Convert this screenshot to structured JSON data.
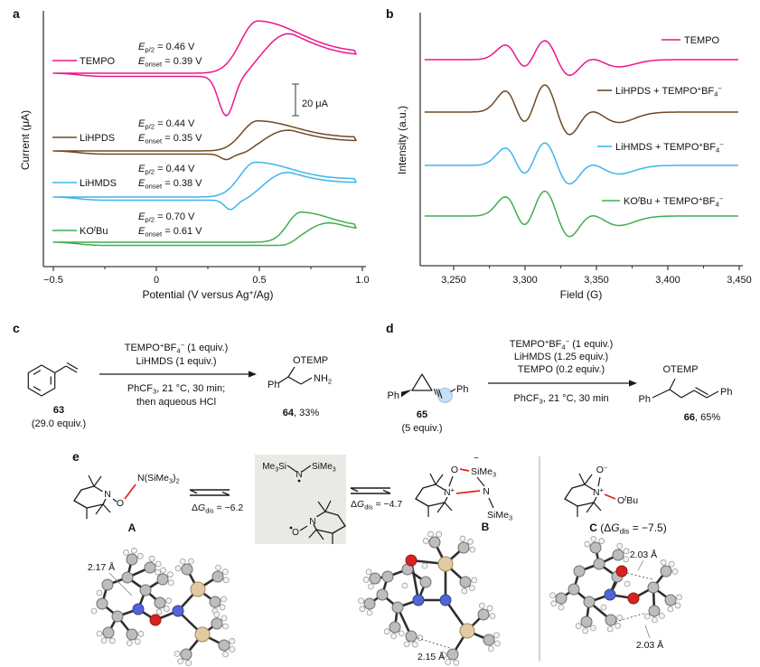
{
  "colors": {
    "pink": "#ec168c",
    "brown": "#6e4a24",
    "blue": "#3db5e9",
    "green": "#3fae4f",
    "axis": "#3a3a3a",
    "highlight_bond": "#e32222",
    "box_bg": "#e9e9e6",
    "circle_highlight": "#c7dff2"
  },
  "panels": {
    "a": {
      "label": "a",
      "y_title": "Current (μA)",
      "x_title": "Potential (V versus Ag^{+}/Ag)",
      "x_ticks": [
        "−0.5",
        "0",
        "0.5",
        "1.0"
      ],
      "scale_bar": "20 μA",
      "series": [
        {
          "name": "TEMPO",
          "ep": "*E*_{p/2} = 0.46 V",
          "eonset": "*E*_{onset} = 0.39 V"
        },
        {
          "name": "LiHPDS",
          "ep": "*E*_{p/2} = 0.44 V",
          "eonset": "*E*_{onset} = 0.35 V"
        },
        {
          "name": "LiHMDS",
          "ep": "*E*_{p/2} = 0.44 V",
          "eonset": "*E*_{onset} = 0.38 V"
        },
        {
          "name": "KO^{t}Bu",
          "ep": "*E*_{p/2} = 0.70 V",
          "eonset": "*E*_{onset} = 0.61 V"
        }
      ]
    },
    "b": {
      "label": "b",
      "y_title": "Intensity (a.u.)",
      "x_title": "Field (G)",
      "x_ticks": [
        "3,250",
        "3,300",
        "3,350",
        "3,400",
        "3,450"
      ],
      "series": [
        {
          "name": "TEMPO"
        },
        {
          "name": "LiHPDS + TEMPO^{+}BF_{4}^{−}"
        },
        {
          "name": "LiHMDS + TEMPO^{+}BF_{4}^{−}"
        },
        {
          "name": "KO^{t}Bu + TEMPO^{+}BF_{4}^{−}"
        }
      ]
    },
    "c": {
      "label": "c",
      "above_arrow": [
        "TEMPO^{+}BF_{4}^{−} (1 equiv.)",
        "LiHMDS (1 equiv.)"
      ],
      "below_arrow": [
        "PhCF_{3}, 21 °C, 30 min;",
        "then aqueous HCl"
      ],
      "reactant_id": "**63**",
      "reactant_equiv": "(29.0 equiv.)",
      "product_labels": {
        "otemp": "OTEMP",
        "ph": "Ph",
        "nh2": "NH_{2}"
      },
      "product_id": "**64**, 33%"
    },
    "d": {
      "label": "d",
      "above_arrow": [
        "TEMPO^{+}BF_{4}^{−} (1 equiv.)",
        "LiHMDS (1.25 equiv.)",
        "TEMPO (0.2 equiv.)"
      ],
      "below_arrow": [
        "PhCF_{3}, 21 °C, 30 min"
      ],
      "reactant_id": "**65**",
      "reactant_equiv": "(5 equiv.)",
      "reactant_labels": {
        "ph_left": "Ph",
        "ph_right": "Ph"
      },
      "product_labels": {
        "otemp": "OTEMP",
        "ph_left": "Ph",
        "ph_right": "Ph"
      },
      "product_id": "**66**, 65%"
    },
    "e": {
      "label": "e",
      "dG_left": "Δ*G*_{dis} = −6.2",
      "dG_right": "Δ*G*_{dis} = −4.7",
      "structure_A": {
        "name": "**A**",
        "ring_N": "N",
        "ring_O": "O",
        "group_label": "N(SiMe_{3})_{2}"
      },
      "radical_box": {
        "si_left": "Me_{3}Si",
        "n": "N",
        "si_right": "SiMe_{3}",
        "tempo_n": "N",
        "tempo_o": "O"
      },
      "structure_B": {
        "name": "**B**",
        "o": "O",
        "minus": "−",
        "si_top": "SiMe_{3}",
        "n_plus": "N^{+}",
        "n": "N",
        "si_bottom": "SiMe_{3}"
      },
      "structure_C": {
        "name": "**C** (Δ*G*_{dis} = −7.5)",
        "o_minus": "O^{−}",
        "n_plus": "N^{+}",
        "otbu": "O^{t}Bu"
      },
      "distances": {
        "a": "2.17 Å",
        "b": "2.15 Å",
        "c_top": "2.03 Å",
        "c_bottom": "2.03 Å"
      }
    }
  },
  "chart_data": [
    {
      "id": "a",
      "type": "line",
      "subtype": "cyclic_voltammogram",
      "xlabel": "Potential (V versus Ag+/Ag)",
      "ylabel": "Current (μA)",
      "x_ticks": [
        -0.5,
        0,
        0.5,
        1.0
      ],
      "x_range": [
        -0.5,
        0.97
      ],
      "scale_bar_uA": 20,
      "grid": false,
      "series": [
        {
          "name": "TEMPO",
          "color": "#ec168c",
          "E_p2_V": 0.46,
          "E_onset_V": 0.39,
          "anodic_peak_V": 0.49,
          "anodic_peak_uA": 33,
          "cathodic_peak_V": 0.34,
          "cathodic_depth_uA": 25,
          "tail_fraction": 0.4
        },
        {
          "name": "LiHPDS",
          "color": "#6e4a24",
          "E_p2_V": 0.44,
          "E_onset_V": 0.35,
          "anodic_peak_V": 0.49,
          "anodic_peak_uA": 19,
          "cathodic_peak_V": 0.34,
          "cathodic_depth_uA": 3.5,
          "tail_fraction": 0.45
        },
        {
          "name": "LiHMDS",
          "color": "#3db5e9",
          "E_p2_V": 0.44,
          "E_onset_V": 0.38,
          "anodic_peak_V": 0.48,
          "anodic_peak_uA": 22,
          "cathodic_peak_V": 0.36,
          "cathodic_depth_uA": 6,
          "tail_fraction": 0.52
        },
        {
          "name": "KOtBu",
          "color": "#3fae4f",
          "E_p2_V": 0.7,
          "E_onset_V": 0.61,
          "anodic_peak_V": 0.7,
          "anodic_peak_uA": 19,
          "cathodic_peak_V": null,
          "cathodic_depth_uA": 0,
          "tail_fraction": 0.52
        }
      ]
    },
    {
      "id": "b",
      "type": "line",
      "subtype": "EPR_first_derivative",
      "xlabel": "Field (G)",
      "ylabel": "Intensity (a.u.)",
      "x_ticks": [
        3250,
        3300,
        3350,
        3400,
        3450
      ],
      "x_range": [
        3230,
        3450
      ],
      "grid": false,
      "triplet_model": {
        "centers_G": [
          3294,
          3322,
          3352
        ],
        "widths_G": [
          8,
          10,
          14
        ],
        "rel_amps": [
          1,
          1.5,
          0.5
        ]
      },
      "observed_features_G": {
        "positive_peaks": [
          3288,
          3313
        ],
        "main_negative": 3328,
        "weak_negative": 3360
      },
      "series": [
        {
          "name": "TEMPO",
          "color": "#ec168c",
          "amplitude": 16
        },
        {
          "name": "LiHPDS + TEMPO+BF4−",
          "color": "#6e4a24",
          "amplitude": 23
        },
        {
          "name": "LiHMDS + TEMPO+BF4−",
          "color": "#3db5e9",
          "amplitude": 19
        },
        {
          "name": "KOtBu + TEMPO+BF4−",
          "color": "#3fae4f",
          "amplitude": 21
        }
      ]
    }
  ]
}
